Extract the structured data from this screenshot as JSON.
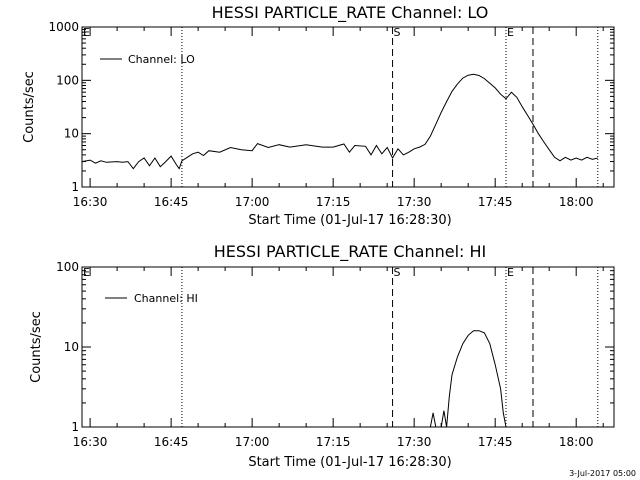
{
  "footer_date": "3-Jul-2017 05:00",
  "chart_data": [
    {
      "type": "line",
      "title": "HESSI PARTICLE_RATE Channel: LO",
      "xlabel": "Start Time (01-Jul-17 16:28:30)",
      "ylabel": "Counts/sec",
      "yscale": "log",
      "ylim": [
        1,
        1000
      ],
      "xlim": [
        "16:28:30",
        "18:07"
      ],
      "xticks": [
        "16:30",
        "16:45",
        "17:00",
        "17:15",
        "17:30",
        "17:45",
        "18:00"
      ],
      "yticks": [
        "1",
        "10",
        "100",
        "1000"
      ],
      "legend": {
        "entries": [
          "Channel: LO"
        ],
        "placement": "top-left"
      },
      "markers": [
        {
          "label": "E",
          "time": "16:28:30",
          "style": "dotted"
        },
        {
          "label": "",
          "time": "16:47",
          "style": "dotted"
        },
        {
          "label": "S",
          "time": "17:26",
          "style": "dashed"
        },
        {
          "label": "E",
          "time": "17:47",
          "style": "dotted"
        },
        {
          "label": "",
          "time": "17:52",
          "style": "dashed"
        },
        {
          "label": "",
          "time": "18:04",
          "style": "dotted"
        }
      ],
      "series": [
        {
          "values": [
            [
              "16:28:30",
              3
            ],
            [
              "16:30",
              3.2
            ],
            [
              "16:31",
              2.8
            ],
            [
              "16:32",
              3.1
            ],
            [
              "16:33",
              2.9
            ],
            [
              "16:35",
              3
            ],
            [
              "16:36",
              2.9
            ],
            [
              "16:37",
              3
            ],
            [
              "16:38",
              2.2
            ],
            [
              "16:39",
              3
            ],
            [
              "16:40",
              3.5
            ],
            [
              "16:41",
              2.5
            ],
            [
              "16:42",
              3.5
            ],
            [
              "16:43",
              2.4
            ],
            [
              "16:44",
              3
            ],
            [
              "16:45",
              3.8
            ],
            [
              "16:46",
              2.6
            ],
            [
              "16:46:30",
              2.2
            ],
            [
              "16:47",
              3.1
            ],
            [
              "16:48",
              3.6
            ],
            [
              "16:49",
              4.2
            ],
            [
              "16:50",
              4.5
            ],
            [
              "16:51",
              3.9
            ],
            [
              "16:52",
              4.8
            ],
            [
              "16:54",
              4.5
            ],
            [
              "16:56",
              5.5
            ],
            [
              "16:58",
              5
            ],
            [
              "17:00",
              4.8
            ],
            [
              "17:01",
              6.5
            ],
            [
              "17:03",
              5.5
            ],
            [
              "17:05",
              6.2
            ],
            [
              "17:07",
              5.6
            ],
            [
              "17:10",
              6.2
            ],
            [
              "17:13",
              5.6
            ],
            [
              "17:15",
              5.6
            ],
            [
              "17:17",
              6.4
            ],
            [
              "17:18",
              4.5
            ],
            [
              "17:19",
              6
            ],
            [
              "17:21",
              5.8
            ],
            [
              "17:22",
              4
            ],
            [
              "17:23",
              6
            ],
            [
              "17:24",
              4.2
            ],
            [
              "17:25",
              5.5
            ],
            [
              "17:26",
              3.5
            ],
            [
              "17:27",
              5.2
            ],
            [
              "17:28",
              4
            ],
            [
              "17:29",
              4.5
            ],
            [
              "17:30",
              5.2
            ],
            [
              "17:31",
              5.6
            ],
            [
              "17:32",
              6.3
            ],
            [
              "17:33",
              9
            ],
            [
              "17:34",
              15
            ],
            [
              "17:35",
              25
            ],
            [
              "17:36",
              40
            ],
            [
              "17:37",
              62
            ],
            [
              "17:38",
              85
            ],
            [
              "17:39",
              110
            ],
            [
              "17:40",
              125
            ],
            [
              "17:41",
              130
            ],
            [
              "17:42",
              123
            ],
            [
              "17:43",
              108
            ],
            [
              "17:44",
              88
            ],
            [
              "17:45",
              72
            ],
            [
              "17:46",
              55
            ],
            [
              "17:47",
              45
            ],
            [
              "17:48",
              60
            ],
            [
              "17:49",
              48
            ],
            [
              "17:50",
              32
            ],
            [
              "17:51",
              22
            ],
            [
              "17:52",
              15
            ],
            [
              "17:53",
              10
            ],
            [
              "17:54",
              7
            ],
            [
              "17:55",
              5
            ],
            [
              "17:56",
              3.6
            ],
            [
              "17:57",
              3.1
            ],
            [
              "17:58",
              3.6
            ],
            [
              "17:59",
              3.2
            ],
            [
              "18:00",
              3.5
            ],
            [
              "18:01",
              3.2
            ],
            [
              "18:02",
              3.6
            ],
            [
              "18:03",
              3.3
            ],
            [
              "18:04",
              3.5
            ]
          ]
        }
      ]
    },
    {
      "type": "line",
      "title": "HESSI PARTICLE_RATE Channel: HI",
      "xlabel": "Start Time (01-Jul-17 16:28:30)",
      "ylabel": "Counts/sec",
      "yscale": "log",
      "ylim": [
        1,
        100
      ],
      "xlim": [
        "16:28:30",
        "18:07"
      ],
      "xticks": [
        "16:30",
        "16:45",
        "17:00",
        "17:15",
        "17:30",
        "17:45",
        "18:00"
      ],
      "yticks": [
        "1",
        "10",
        "100"
      ],
      "legend": {
        "entries": [
          "Channel: HI"
        ],
        "placement": "top-left"
      },
      "markers": [
        {
          "label": "E",
          "time": "16:28:30",
          "style": "dotted"
        },
        {
          "label": "",
          "time": "16:47",
          "style": "dotted"
        },
        {
          "label": "S",
          "time": "17:26",
          "style": "dashed"
        },
        {
          "label": "E",
          "time": "17:47",
          "style": "dotted"
        },
        {
          "label": "",
          "time": "17:52",
          "style": "dashed"
        },
        {
          "label": "",
          "time": "18:04",
          "style": "dotted"
        }
      ],
      "series": [
        {
          "values": [
            [
              "17:33",
              1
            ],
            [
              "17:33:30",
              1.5
            ],
            [
              "17:34",
              1
            ],
            [
              "17:35",
              1
            ],
            [
              "17:35:30",
              1.6
            ],
            [
              "17:36",
              1
            ],
            [
              "17:36:30",
              2.4
            ],
            [
              "17:37",
              4.5
            ],
            [
              "17:38",
              7.5
            ],
            [
              "17:39",
              11
            ],
            [
              "17:40",
              14
            ],
            [
              "17:41",
              16
            ],
            [
              "17:42",
              16
            ],
            [
              "17:43",
              15
            ],
            [
              "17:44",
              11
            ],
            [
              "17:45",
              6
            ],
            [
              "17:46",
              3
            ],
            [
              "17:46:30",
              1.5
            ],
            [
              "17:47",
              1
            ]
          ]
        }
      ]
    }
  ]
}
